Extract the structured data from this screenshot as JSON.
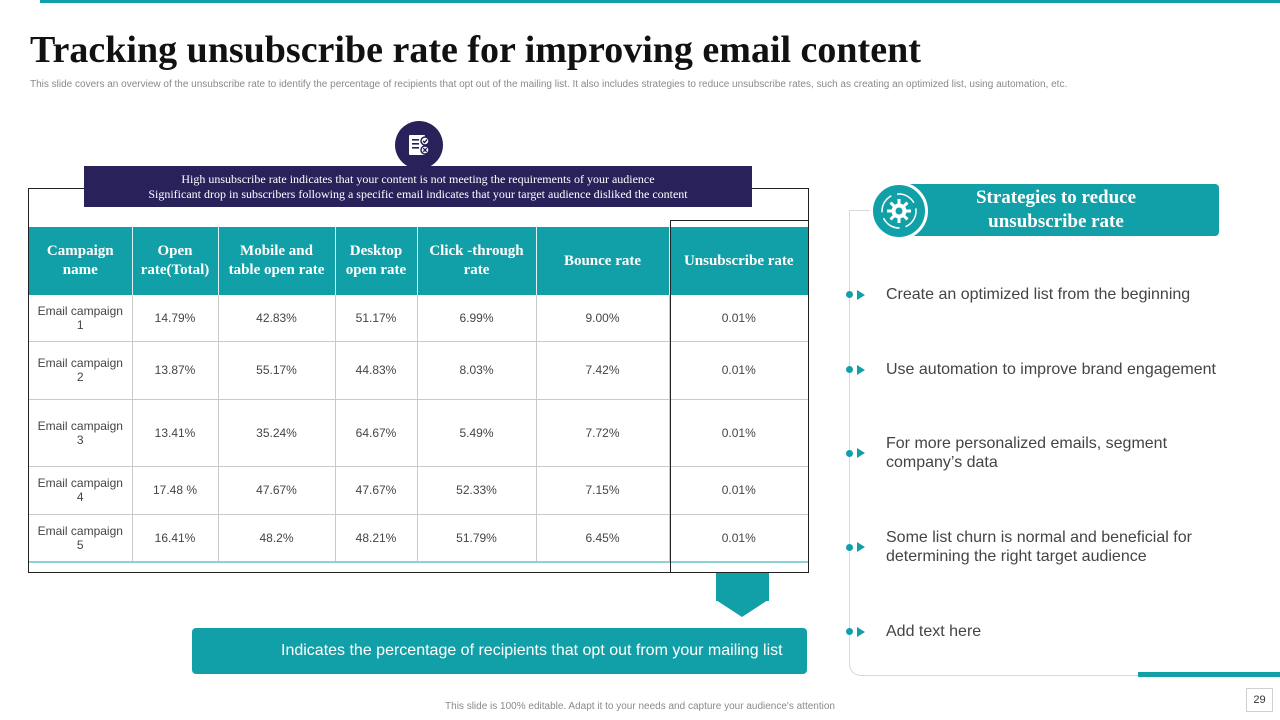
{
  "slide": {
    "title": "Tracking unsubscribe rate for improving email content",
    "subtitle": "This slide covers an overview of the unsubscribe rate to identify the percentage of recipients that opt out of the mailing list. It also includes strategies to reduce unsubscribe rates, such as creating an optimized list, using automation,  etc.",
    "footer": "This slide is 100% editable. Adapt it to your needs and capture your audience's attention",
    "page_number": "29"
  },
  "banner": {
    "line1": "High unsubscribe rate indicates that your content is not meeting the requirements of your audience",
    "line2": "Significant drop in subscribers following a specific email indicates that your target audience disliked the content",
    "icon": "document-checklist-icon"
  },
  "table": {
    "headers": [
      "Campaign name",
      "Open rate(Total)",
      "Mobile and table open rate",
      "Desktop open rate",
      "Click -through rate",
      "Bounce rate",
      "Unsubscribe rate"
    ],
    "rows": [
      [
        "Email campaign 1",
        "14.79%",
        "42.83%",
        "51.17%",
        "6.99%",
        "9.00%",
        "0.01%"
      ],
      [
        "Email campaign 2",
        "13.87%",
        "55.17%",
        "44.83%",
        "8.03%",
        "7.42%",
        "0.01%"
      ],
      [
        "Email campaign 3",
        "13.41%",
        "35.24%",
        "64.67%",
        "5.49%",
        "7.72%",
        "0.01%"
      ],
      [
        "Email campaign 4",
        "17.48 %",
        "47.67%",
        "47.67%",
        "52.33%",
        "7.15%",
        "0.01%"
      ],
      [
        "Email campaign 5",
        "16.41%",
        "48.2%",
        "48.21%",
        "51.79%",
        "6.45%",
        "0.01%"
      ]
    ]
  },
  "note": "Indicates the percentage of recipients that opt out from your mailing list",
  "strategies": {
    "title_line1": "Strategies to reduce",
    "title_line2": "unsubscribe rate",
    "icon": "gear-icon",
    "items": [
      "Create an optimized list from the beginning",
      "Use automation to improve brand engagement",
      "For more personalized emails, segment company’s data",
      "Some list churn is normal and beneficial for determining the right target audience",
      "Add text here"
    ]
  },
  "colors": {
    "teal": "#12a0a8",
    "navy": "#28215a"
  }
}
